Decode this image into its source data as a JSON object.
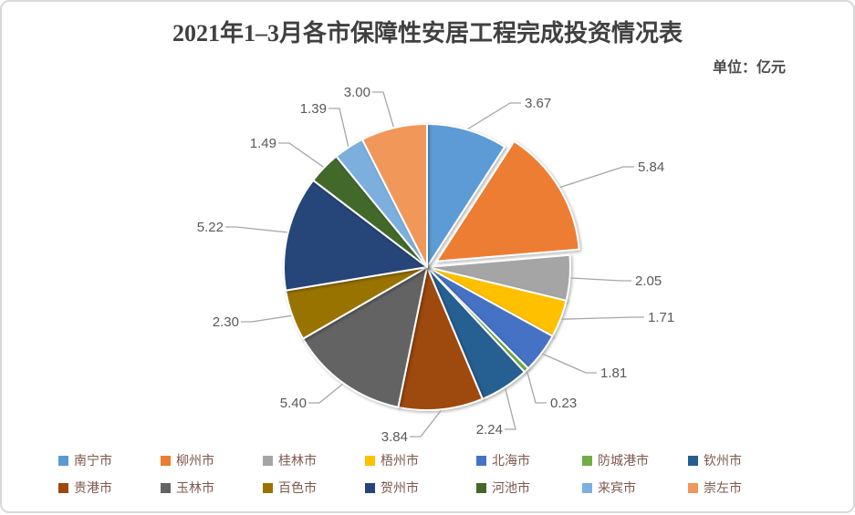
{
  "title": "2021年1–3月各市保障性安居工程完成投资情况表",
  "unit_label": "单位：亿元",
  "chart_data": {
    "type": "pie",
    "title": "2021年1–3月各市保障性安居工程完成投资情况表",
    "unit": "亿元",
    "categories": [
      "南宁市",
      "柳州市",
      "桂林市",
      "梧州市",
      "北海市",
      "防城港市",
      "钦州市",
      "贵港市",
      "玉林市",
      "百色市",
      "贺州市",
      "河池市",
      "来宾市",
      "崇左市"
    ],
    "values": [
      3.67,
      5.84,
      2.05,
      1.71,
      1.81,
      0.23,
      2.24,
      3.84,
      5.4,
      2.3,
      5.22,
      1.49,
      1.39,
      3.0
    ],
    "colors": [
      "#5B9BD5",
      "#ED7D31",
      "#A5A5A5",
      "#FFC000",
      "#4472C4",
      "#70AD47",
      "#255E91",
      "#9E480E",
      "#636363",
      "#997300",
      "#264478",
      "#43682B",
      "#7CAFDD",
      "#F1975A"
    ],
    "total": 40.19,
    "exploded_index": 1,
    "start_angle_deg": 0,
    "direction": "clockwise",
    "data_labels": "values outside with gray leader lines, 2 decimals",
    "legend_position": "bottom",
    "legend_rows": 2
  },
  "styles": {
    "title_color": "#404040",
    "label_color": "#595959",
    "leader_line_color": "#A6A6A6",
    "legend_text_color": "#7D584C",
    "slice_border_color": "#FFFFFF",
    "frame_border_color": "#D9D9D9"
  }
}
